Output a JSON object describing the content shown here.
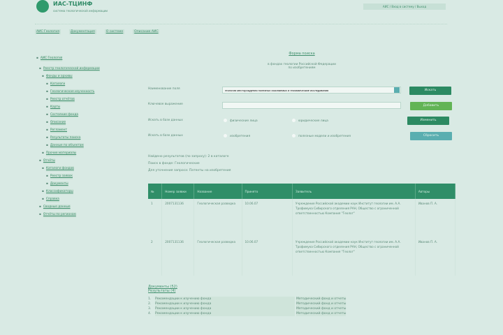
{
  "header": {
    "brand": "ИАС-ТЦИНФ",
    "tagline": "система геологической информации",
    "login": "АИС / Вход в систему / Выход"
  },
  "nav": [
    "АИС Геология",
    "Документация",
    "О системе",
    "Описание АИС"
  ],
  "sidebar": [
    "АИС Геология",
    "Реестр геологической информации",
    "Фонды и архивы",
    "Каталоги",
    "Геологическая изученность",
    "Реестр отчётов",
    "Карты",
    "Состояние фонда",
    "Описание",
    "Регламент",
    "Результаты поиска",
    "Данные по объектам",
    "Прочие материалы",
    "Отчёты",
    "Каталоги фондов",
    "Реестр заявок",
    "Документы",
    "Классификаторы",
    "Справка",
    "Сводные данные",
    "Отчёты по регионам"
  ],
  "main": {
    "title": "Форма поиска",
    "subtitle1": "в фондах геологии Российской Федерации",
    "subtitle2": "по изобретениям",
    "fields": [
      {
        "label": "Наименование поля",
        "value": "геология месторождения полезных ископаемых и геохимические исследования"
      },
      {
        "label": "Ключевое выражение",
        "value": ""
      }
    ],
    "radios1": {
      "label": "Искать в базе данных",
      "a": "физические лица",
      "b": "юридические лица"
    },
    "radios2": {
      "label": "Искать в базе данных",
      "a": "изобретения",
      "b": "полезные модели и изобретения"
    },
    "buttons": {
      "search": "Искать",
      "add": "Добавить",
      "change": "Изменить",
      "reset": "Сбросить"
    },
    "info": [
      "Найдено результатов (по запросу): 2 в каталоге",
      "Поиск в фонде: Геологические",
      "Для уточнения запроса: Патенты на изобретения"
    ]
  },
  "table": {
    "headers": [
      "№",
      "Номер заявки",
      "Название",
      "Принято",
      "Заявитель",
      "Авторы"
    ],
    "rows": [
      [
        "1",
        "2007131136",
        "Геологическая разведка",
        "10.06.07",
        "Учреждение Российской академии наук Институт геологии им. А.А. Трофимука Сибирского отделения РАН, Общество с ограниченной ответственностью Компания \"Геолог\"",
        "Иванов П. А."
      ],
      [
        "2",
        "2007131136",
        "Геологическая разведка",
        "10.06.07",
        "Учреждение Российской академии наук Институт геологии им. А.А. Трофимука Сибирского отделения РАН, Общество с ограниченной ответственностью Компания \"Геолог\"",
        "Иванов П. А."
      ]
    ]
  },
  "bottom": {
    "h1": "Документы (52)",
    "h2": "Результаты (4)",
    "items": [
      [
        "1.",
        "Рекомендации к изучению фонда",
        "Методический фонд и отчеты"
      ],
      [
        "2.",
        "Рекомендации к изучению фонда",
        "Методический фонд и отчеты"
      ],
      [
        "3.",
        "Рекомендации к изучению фонда",
        "Методический фонд и отчеты"
      ],
      [
        "4.",
        "Рекомендации к изучению фонда",
        "Методический фонд и отчеты"
      ]
    ]
  },
  "colors": {
    "accent": "#2f8e68",
    "background": "#d9eae4"
  }
}
